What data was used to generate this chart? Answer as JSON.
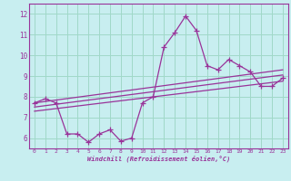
{
  "xlabel": "Windchill (Refroidissement éolien,°C)",
  "xlim": [
    -0.5,
    23.5
  ],
  "ylim": [
    5.5,
    12.5
  ],
  "yticks": [
    6,
    7,
    8,
    9,
    10,
    11,
    12
  ],
  "xticks": [
    0,
    1,
    2,
    3,
    4,
    5,
    6,
    7,
    8,
    9,
    10,
    11,
    12,
    13,
    14,
    15,
    16,
    17,
    18,
    19,
    20,
    21,
    22,
    23
  ],
  "bg_color": "#c8eef0",
  "line_color": "#993399",
  "grid_color": "#a0d8c8",
  "series1_x": [
    0,
    1,
    2,
    3,
    4,
    5,
    6,
    7,
    8,
    9,
    10,
    11,
    12,
    13,
    14,
    15,
    16,
    17,
    18,
    19,
    20,
    21,
    22,
    23
  ],
  "series1_y": [
    7.7,
    7.9,
    7.7,
    6.2,
    6.2,
    5.8,
    6.2,
    6.4,
    5.85,
    6.0,
    7.7,
    8.0,
    10.4,
    11.1,
    11.9,
    11.2,
    9.5,
    9.3,
    9.8,
    9.5,
    9.2,
    8.5,
    8.5,
    8.9
  ],
  "line1_x": [
    0,
    23
  ],
  "line1_y": [
    7.7,
    9.3
  ],
  "line2_x": [
    0,
    23
  ],
  "line2_y": [
    7.5,
    9.05
  ],
  "line3_x": [
    0,
    23
  ],
  "line3_y": [
    7.3,
    8.75
  ]
}
